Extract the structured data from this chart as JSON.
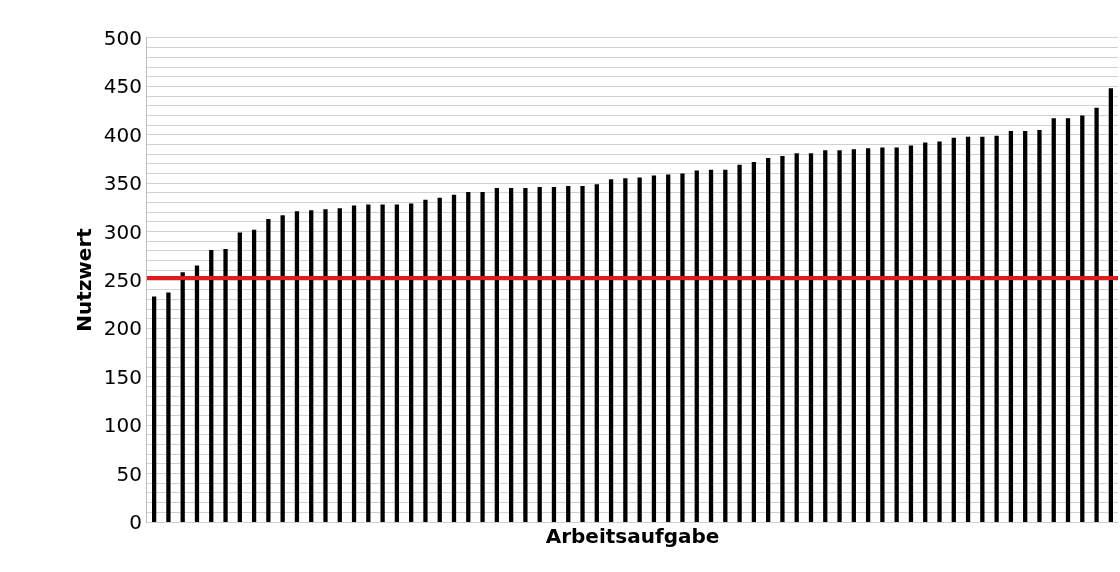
{
  "chart_data": {
    "type": "bar",
    "xlabel": "Arbeitsaufgabe",
    "ylabel": "Nutzwert",
    "categories": [
      null,
      null,
      null,
      null,
      null,
      null,
      null,
      null,
      null,
      null,
      null,
      null,
      null,
      null,
      null,
      null,
      null,
      null,
      null,
      null,
      null,
      null,
      null,
      null,
      null,
      null,
      null,
      null,
      null,
      null,
      null,
      null,
      null,
      null,
      null,
      null,
      null,
      null,
      null,
      null,
      null,
      null,
      null,
      null,
      null,
      null,
      null,
      null,
      null,
      null,
      null,
      null,
      null,
      null,
      null,
      null,
      null,
      null,
      null,
      null,
      null,
      null,
      null,
      null,
      null,
      null,
      null,
      null
    ],
    "values": [
      233,
      237,
      258,
      265,
      281,
      282,
      299,
      302,
      313,
      317,
      321,
      322,
      323,
      324,
      327,
      328,
      328,
      328,
      329,
      333,
      335,
      338,
      341,
      341,
      345,
      345,
      345,
      346,
      346,
      347,
      347,
      349,
      354,
      355,
      356,
      358,
      359,
      360,
      363,
      364,
      364,
      369,
      372,
      376,
      378,
      381,
      381,
      384,
      384,
      385,
      386,
      387,
      387,
      389,
      392,
      393,
      397,
      398,
      398,
      399,
      404,
      404,
      405,
      417,
      417,
      420,
      428,
      448
    ],
    "color": "#000000",
    "ylim": [
      0,
      500
    ],
    "yticks": [
      0,
      {
        "value": 10,
        "label": null
      },
      {
        "value": 20,
        "label": null
      },
      {
        "value": 30,
        "label": null
      },
      {
        "value": 40,
        "label": null
      },
      50,
      {
        "value": 60,
        "label": null
      },
      {
        "value": 70,
        "label": null
      },
      {
        "value": 80,
        "label": null
      },
      {
        "value": 90,
        "label": null
      },
      100,
      {
        "value": 110,
        "label": null
      },
      {
        "value": 120,
        "label": null
      },
      {
        "value": 130,
        "label": null
      },
      {
        "value": 140,
        "label": null
      },
      150,
      {
        "value": 160,
        "label": null
      },
      {
        "value": 170,
        "label": null
      },
      {
        "value": 180,
        "label": null
      },
      {
        "value": 190,
        "label": null
      },
      200,
      {
        "value": 210,
        "label": null
      },
      {
        "value": 220,
        "label": null
      },
      {
        "value": 230,
        "label": null
      },
      {
        "value": 240,
        "label": null
      },
      250,
      {
        "value": 260,
        "label": null
      },
      {
        "value": 270,
        "label": null
      },
      {
        "value": 280,
        "label": null
      },
      {
        "value": 290,
        "label": null
      },
      300,
      {
        "value": 310,
        "label": null
      },
      {
        "value": 320,
        "label": null
      },
      {
        "value": 330,
        "label": null
      },
      {
        "value": 340,
        "label": null
      },
      350,
      {
        "value": 360,
        "label": null
      },
      {
        "value": 370,
        "label": null
      },
      {
        "value": 380,
        "label": null
      },
      {
        "value": 390,
        "label": null
      },
      400,
      {
        "value": 410,
        "label": null
      },
      {
        "value": 420,
        "label": null
      },
      {
        "value": 430,
        "label": null
      },
      {
        "value": 440,
        "label": null
      },
      450,
      {
        "value": 460,
        "label": null
      },
      {
        "value": 470,
        "label": null
      },
      {
        "value": 480,
        "label": null
      },
      {
        "value": 490,
        "label": null
      },
      500
    ],
    "grid": "y",
    "ref_lines": [
      {
        "axis": "y",
        "value": 252,
        "color": "#e21a1a"
      }
    ]
  }
}
